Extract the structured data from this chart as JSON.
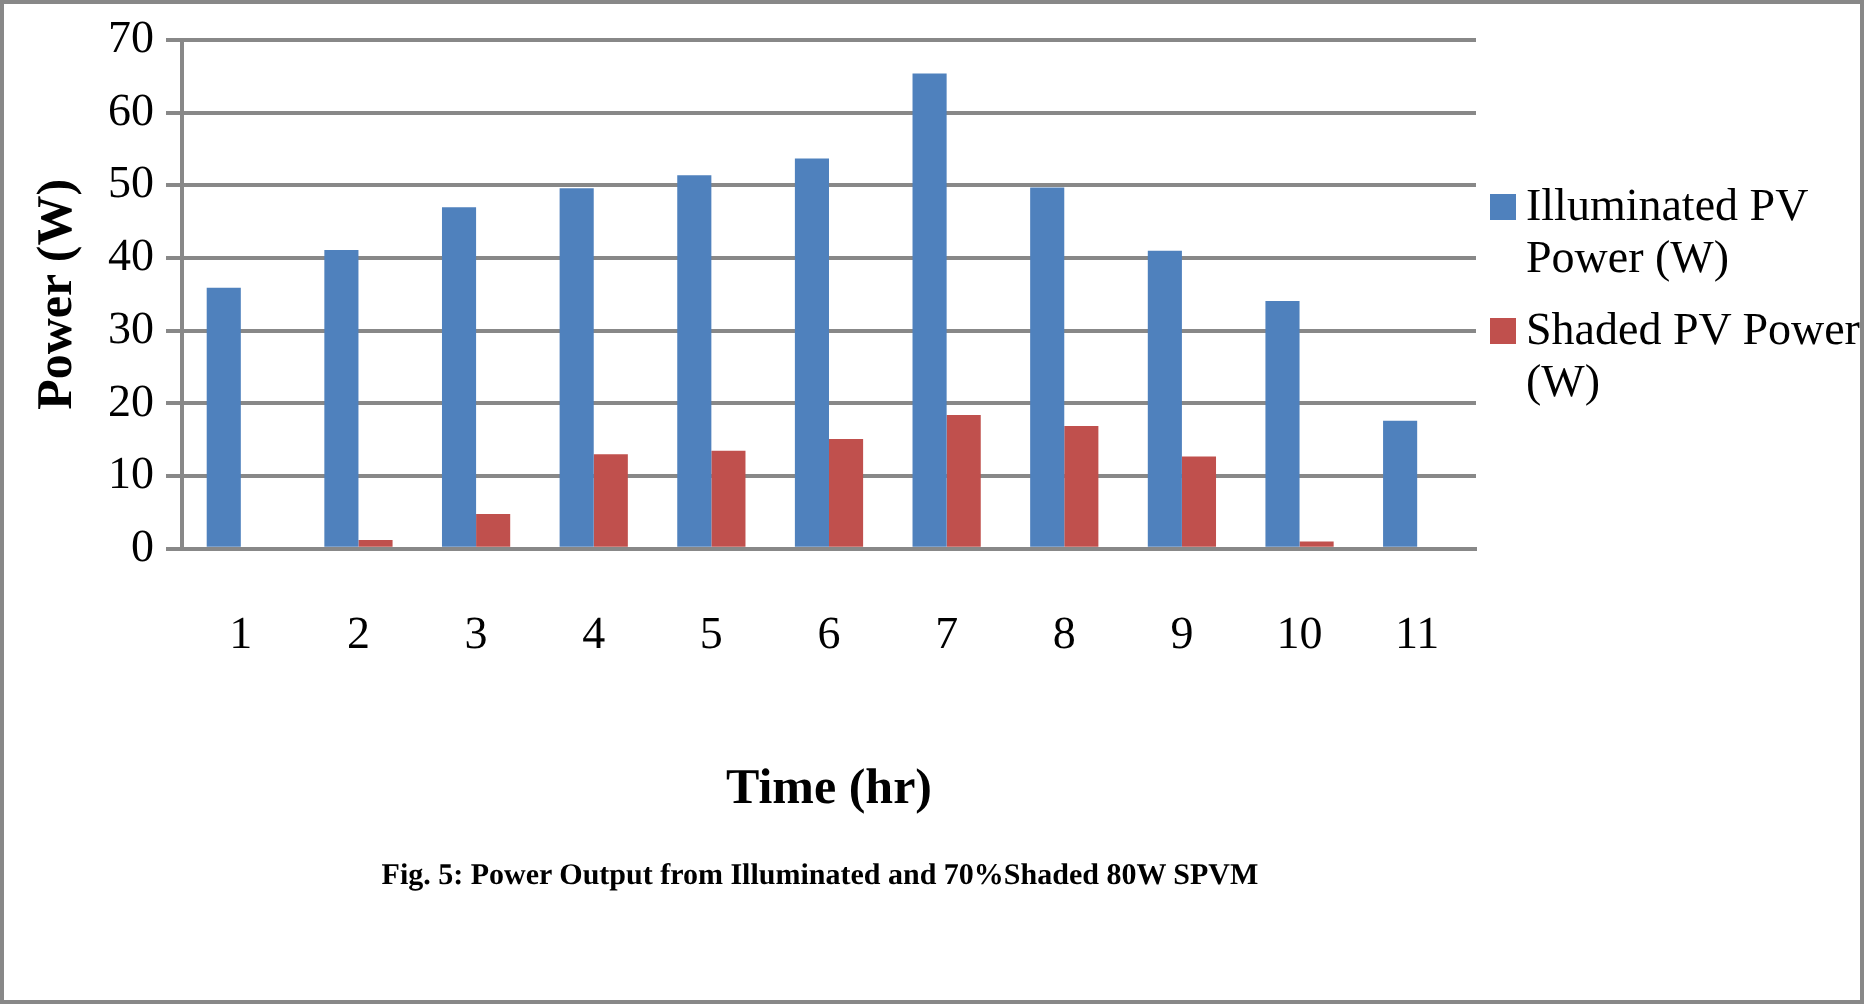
{
  "chart_data": {
    "type": "bar",
    "xlabel": "Time (hr)",
    "ylabel": "Power (W)",
    "categories": [
      "1",
      "2",
      "3",
      "4",
      "5",
      "6",
      "7",
      "8",
      "9",
      "10",
      "11"
    ],
    "series": [
      {
        "name": "Illuminated PV Power (W)",
        "color": "#4f81bd",
        "values": [
          35.9,
          41.1,
          47.0,
          49.6,
          51.4,
          53.7,
          65.4,
          49.7,
          41.0,
          34.1,
          17.6
        ]
      },
      {
        "name": "Shaded PV Power (W)",
        "color": "#c0504d",
        "values": [
          0,
          1.2,
          4.8,
          13.0,
          13.5,
          15.1,
          18.4,
          16.9,
          12.7,
          1.0,
          0
        ]
      }
    ],
    "ylim": [
      0,
      70
    ],
    "yticks": [
      0,
      10,
      20,
      30,
      40,
      50,
      60,
      70
    ],
    "grid": "y",
    "legend": "right",
    "annotations": [
      "Fig. 5: Power Output from Illuminated and 70%Shaded 80W SPVM"
    ]
  }
}
